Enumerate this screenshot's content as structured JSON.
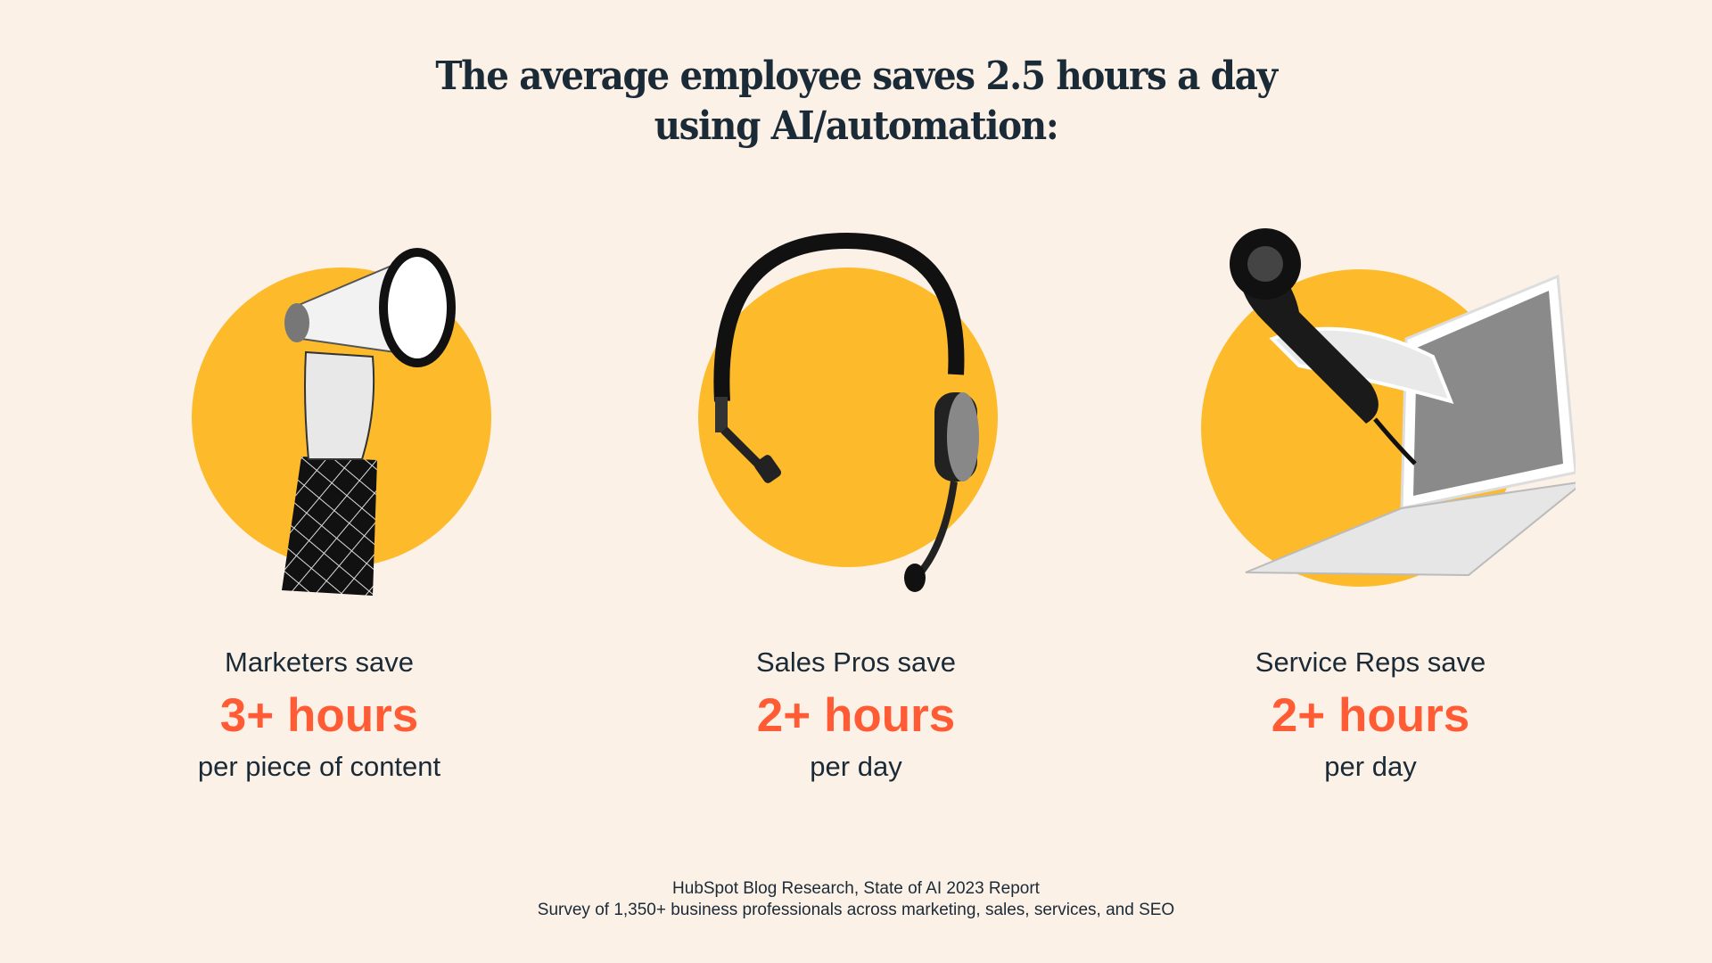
{
  "title": {
    "line1": "The average employee saves 2.5 hours a day",
    "line2": "using AI/automation:"
  },
  "colors": {
    "background": "#fcf1e7",
    "circle": "#fdbb2b",
    "accent": "#ff5c35",
    "text": "#1b2a37"
  },
  "stats": [
    {
      "icon": "megaphone-in-hand-icon",
      "lead": "Marketers save",
      "value": "3+ hours",
      "tail": "per piece of content"
    },
    {
      "icon": "headset-icon",
      "lead": "Sales Pros save",
      "value": "2+ hours",
      "tail": "per day"
    },
    {
      "icon": "phone-from-laptop-icon",
      "lead": "Service Reps save",
      "value": "2+ hours",
      "tail": "per day"
    }
  ],
  "footer": {
    "line1": "HubSpot Blog Research, State of AI 2023 Report",
    "line2": "Survey of 1,350+ business professionals across marketing, sales, services, and SEO"
  }
}
